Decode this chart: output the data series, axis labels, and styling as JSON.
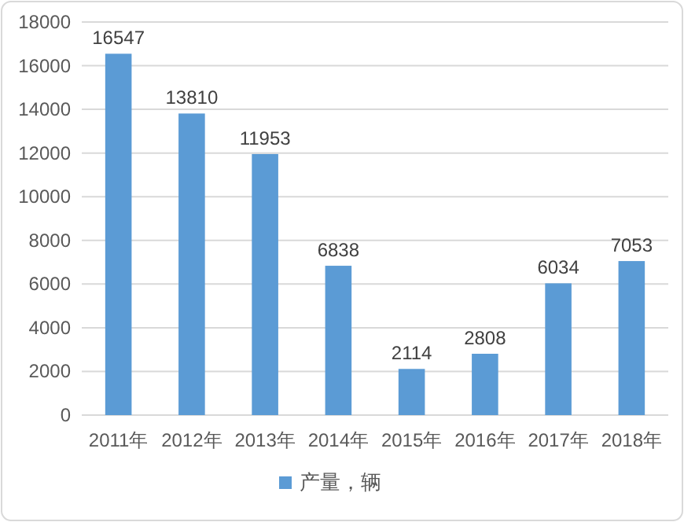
{
  "chart_data": {
    "type": "bar",
    "categories": [
      "2011年",
      "2012年",
      "2013年",
      "2014年",
      "2015年",
      "2016年",
      "2017年",
      "2018年"
    ],
    "series": [
      {
        "name": "产量，辆",
        "color": "#5b9bd5",
        "values": [
          16547,
          13810,
          11953,
          6838,
          2114,
          2808,
          6034,
          7053
        ]
      }
    ],
    "ylim": [
      0,
      18000
    ],
    "yticks": [
      0,
      2000,
      4000,
      6000,
      8000,
      10000,
      12000,
      14000,
      16000,
      18000
    ],
    "grid": "y",
    "legend": "bottom",
    "data_labels": true
  }
}
